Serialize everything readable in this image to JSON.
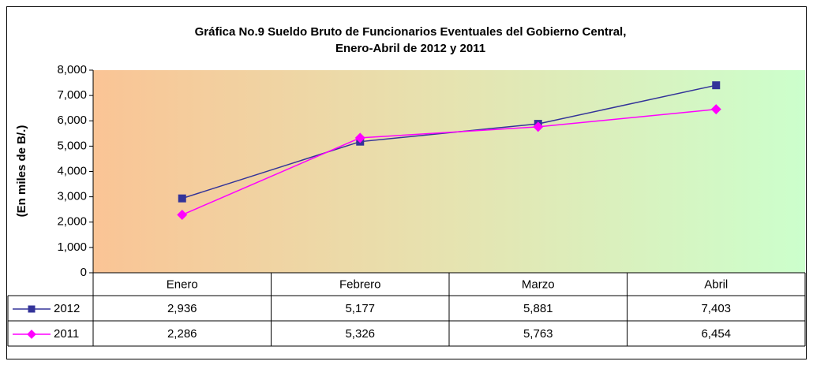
{
  "chart_data": {
    "type": "line",
    "title": [
      "Gráfica No.9 Sueldo Bruto de Funcionarios Eventuales del Gobierno Central,",
      "Enero-Abril de 2012 y 2011"
    ],
    "ylabel": "(En miles de B/.)",
    "categories": [
      "Enero",
      "Febrero",
      "Marzo",
      "Abril"
    ],
    "series": [
      {
        "name": "2012",
        "color": "#333399",
        "marker": "square",
        "values": [
          2936,
          5177,
          5881,
          7403
        ],
        "value_labels": [
          "2,936",
          "5,177",
          "5,881",
          "7,403"
        ]
      },
      {
        "name": "2011",
        "color": "#ff00ff",
        "marker": "diamond",
        "values": [
          2286,
          5326,
          5763,
          6454
        ],
        "value_labels": [
          "2,286",
          "5,326",
          "5,763",
          "6,454"
        ]
      }
    ],
    "ylim": [
      0,
      8000
    ],
    "yticks": [
      0,
      {
        "value": 1000,
        "label": "1,000"
      },
      {
        "value": 2000,
        "label": "2,000"
      },
      {
        "value": 3000,
        "label": "3,000"
      },
      {
        "value": 4000,
        "label": "4,000"
      },
      {
        "value": 5000,
        "label": "5,000"
      },
      {
        "value": 6000,
        "label": "6,000"
      },
      {
        "value": 7000,
        "label": "7,000"
      },
      {
        "value": 8000,
        "label": "8,000"
      }
    ],
    "grid": false,
    "data_table": true
  }
}
